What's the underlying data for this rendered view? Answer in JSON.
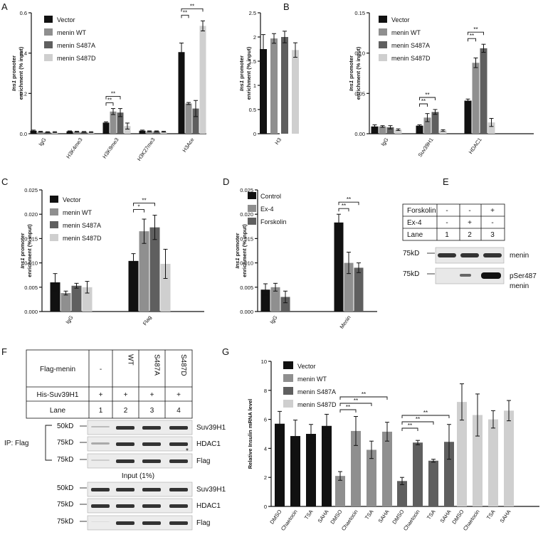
{
  "colors": {
    "s1": "#111111",
    "s2": "#8f8f8f",
    "s3": "#5f5f5f",
    "s4": "#cfcfcf"
  },
  "panels": {
    "A": "A",
    "B": "B",
    "C": "C",
    "D": "D",
    "E": "E",
    "F": "F",
    "G": "G"
  },
  "chart_data": [
    {
      "id": "A1",
      "type": "bar",
      "ylabel_italic": "Ins1",
      "ylabel_rest": " promoter",
      "ylabel2": "enrichment (% input)",
      "ylim": [
        0,
        0.6
      ],
      "yticks": [
        "0.0",
        "0.2",
        "0.4",
        "0.6"
      ],
      "categories": [
        "IgG",
        "H3K4me3",
        "H3K9me3",
        "H3K27me3",
        "H3Ace"
      ],
      "series": [
        {
          "name": "Vector",
          "values": [
            0.015,
            0.012,
            0.055,
            0.015,
            0.405
          ],
          "err": [
            0.003,
            0.002,
            0.004,
            0.003,
            0.045
          ]
        },
        {
          "name": "menin WT",
          "values": [
            0.01,
            0.01,
            0.11,
            0.012,
            0.15
          ],
          "err": [
            0.002,
            0.002,
            0.015,
            0.002,
            0.005
          ]
        },
        {
          "name": "menin S487A",
          "values": [
            0.008,
            0.009,
            0.105,
            0.012,
            0.125
          ],
          "err": [
            0.002,
            0.002,
            0.02,
            0.002,
            0.04
          ]
        },
        {
          "name": "menin S487D",
          "values": [
            0.008,
            0.008,
            0.038,
            0.01,
            0.535
          ],
          "err": [
            0.002,
            0.002,
            0.015,
            0.002,
            0.025
          ]
        }
      ],
      "sig": [
        {
          "cat": 2,
          "from": 0,
          "to": 1,
          "label": "**"
        },
        {
          "cat": 2,
          "from": 0,
          "to": 2,
          "label": "**"
        },
        {
          "cat": 4,
          "from": 0,
          "to": 1,
          "label": "**"
        },
        {
          "cat": 4,
          "from": 0,
          "to": 3,
          "label": "**"
        }
      ]
    },
    {
      "id": "A2",
      "type": "bar",
      "ylabel_italic": "Ins1",
      "ylabel_rest": " promoter",
      "ylabel2": "enrichment (% input)",
      "ylim": [
        0,
        2.5
      ],
      "yticks": [
        "0",
        "0.5",
        "1",
        "1.5",
        "2",
        "2.5"
      ],
      "categories": [
        "H3"
      ],
      "series": [
        {
          "name": "Vector",
          "values": [
            1.75
          ],
          "err": [
            0.3
          ]
        },
        {
          "name": "menin WT",
          "values": [
            1.97
          ],
          "err": [
            0.1
          ]
        },
        {
          "name": "menin S487A",
          "values": [
            2.0
          ],
          "err": [
            0.12
          ]
        },
        {
          "name": "menin S487D",
          "values": [
            1.73
          ],
          "err": [
            0.15
          ]
        }
      ],
      "sig": []
    },
    {
      "id": "B",
      "type": "bar",
      "ylabel_italic": "Ins1",
      "ylabel_rest": " promoter",
      "ylabel2": "enrichment (% input)",
      "ylim": [
        0,
        0.15
      ],
      "yticks": [
        "0.00",
        "0.05",
        "0.10",
        "0.15"
      ],
      "categories": [
        "IgG",
        "Suv39H1",
        "HDAC1"
      ],
      "series": [
        {
          "name": "Vector",
          "values": [
            0.009,
            0.01,
            0.041
          ],
          "err": [
            0.002,
            0.001,
            0.002
          ]
        },
        {
          "name": "menin WT",
          "values": [
            0.009,
            0.02,
            0.088
          ],
          "err": [
            0.001,
            0.005,
            0.006
          ]
        },
        {
          "name": "menin S487A",
          "values": [
            0.008,
            0.027,
            0.106
          ],
          "err": [
            0.002,
            0.003,
            0.005
          ]
        },
        {
          "name": "menin S487D",
          "values": [
            0.005,
            0.004,
            0.014
          ],
          "err": [
            0.001,
            0.001,
            0.005
          ]
        }
      ],
      "sig": [
        {
          "cat": 1,
          "from": 0,
          "to": 1,
          "label": "**"
        },
        {
          "cat": 1,
          "from": 0,
          "to": 2,
          "label": "**"
        },
        {
          "cat": 2,
          "from": 0,
          "to": 1,
          "label": "**"
        },
        {
          "cat": 2,
          "from": 0,
          "to": 2,
          "label": "**"
        }
      ]
    },
    {
      "id": "C",
      "type": "bar",
      "ylabel_italic": "Ins1",
      "ylabel_rest": " promoter",
      "ylabel2": "enrichment (% input)",
      "ylim": [
        0,
        0.025
      ],
      "yticks": [
        "0.000",
        "0.005",
        "0.010",
        "0.015",
        "0.020",
        "0.025"
      ],
      "categories": [
        "IgG",
        "Flag"
      ],
      "series": [
        {
          "name": "Vector",
          "values": [
            0.006,
            0.0104
          ],
          "err": [
            0.0018,
            0.0015
          ]
        },
        {
          "name": "menin WT",
          "values": [
            0.0038,
            0.0165
          ],
          "err": [
            0.0004,
            0.0025
          ]
        },
        {
          "name": "menin S487A",
          "values": [
            0.0053,
            0.0173
          ],
          "err": [
            0.0005,
            0.0025
          ]
        },
        {
          "name": "menin S487D",
          "values": [
            0.005,
            0.0098
          ],
          "err": [
            0.0012,
            0.003
          ]
        }
      ],
      "sig": [
        {
          "cat": 1,
          "from": 0,
          "to": 1,
          "label": "*"
        },
        {
          "cat": 1,
          "from": 0,
          "to": 2,
          "label": "**"
        }
      ]
    },
    {
      "id": "D",
      "type": "bar",
      "ylabel_italic": "Ins1",
      "ylabel_rest": " promoter",
      "ylabel2": "enrichment (% input)",
      "ylim": [
        0,
        0.025
      ],
      "yticks": [
        "0.000",
        "0.005",
        "0.010",
        "0.015",
        "0.020",
        "0.025"
      ],
      "categories": [
        "IgG",
        "Menin"
      ],
      "series": [
        {
          "name": "Control",
          "values": [
            0.0045,
            0.0183
          ],
          "err": [
            0.0012,
            0.0017
          ]
        },
        {
          "name": "Ex-4",
          "values": [
            0.005,
            0.01
          ],
          "err": [
            0.0008,
            0.0022
          ]
        },
        {
          "name": "Forskolin",
          "values": [
            0.003,
            0.009
          ],
          "err": [
            0.0012,
            0.001
          ]
        }
      ],
      "sig": [
        {
          "cat": 1,
          "from": 0,
          "to": 1,
          "label": "**"
        },
        {
          "cat": 1,
          "from": 0,
          "to": 2,
          "label": "**"
        }
      ]
    },
    {
      "id": "G",
      "type": "bar",
      "ylabel": "Relative Insulin mRNA level",
      "ylim": [
        0,
        10
      ],
      "yticks": [
        "0",
        "2",
        "4",
        "6",
        "8",
        "10"
      ],
      "groups": [
        "Vector",
        "menin WT",
        "menin S487A",
        "menin S487D"
      ],
      "treatments": [
        "DMSO",
        "Chaetocin",
        "TSA",
        "SAHA"
      ],
      "series": [
        {
          "name": "Vector",
          "values": [
            5.7,
            4.85,
            5.0,
            5.55
          ],
          "err": [
            0.85,
            1.1,
            0.65,
            0.8
          ]
        },
        {
          "name": "menin WT",
          "values": [
            2.1,
            5.2,
            3.9,
            5.15
          ],
          "err": [
            0.3,
            1.0,
            0.6,
            0.65
          ]
        },
        {
          "name": "menin S487A",
          "values": [
            1.75,
            4.4,
            3.15,
            4.45
          ],
          "err": [
            0.25,
            0.15,
            0.1,
            1.2
          ]
        },
        {
          "name": "menin S487D",
          "values": [
            7.2,
            6.3,
            6.0,
            6.6
          ],
          "err": [
            1.25,
            1.45,
            0.6,
            0.7
          ]
        }
      ],
      "sig": [
        {
          "grp": 1,
          "to": 1,
          "label": "**"
        },
        {
          "grp": 1,
          "to": 2,
          "label": "**"
        },
        {
          "grp": 1,
          "to": 3,
          "label": "**"
        },
        {
          "grp": 2,
          "to": 1,
          "label": "**"
        },
        {
          "grp": 2,
          "to": 2,
          "label": "**"
        },
        {
          "grp": 2,
          "to": 3,
          "label": "**"
        }
      ]
    }
  ],
  "panelE": {
    "rows": [
      {
        "label": "Forskolin",
        "vals": [
          "-",
          "-",
          "+"
        ]
      },
      {
        "label": "Ex-4",
        "vals": [
          "-",
          "+",
          "-"
        ]
      },
      {
        "label": "Lane",
        "vals": [
          "1",
          "2",
          "3"
        ]
      }
    ],
    "blots": [
      {
        "marker": "75kD",
        "label": "menin",
        "label2": ""
      },
      {
        "marker": "75kD",
        "label": "pSer487",
        "label2": "menin"
      }
    ]
  },
  "panelF": {
    "headers": [
      "Flag-menin",
      "-",
      "WT",
      "S487A",
      "S487D"
    ],
    "his": [
      "His-Suv39H1",
      "+",
      "+",
      "+",
      "+"
    ],
    "lane": [
      "Lane",
      "1",
      "2",
      "3",
      "4"
    ],
    "ip_label": "IP: Flag",
    "input_label": "Input (1%)",
    "ip_blots": [
      {
        "marker": "50kD",
        "label": "Suv39H1"
      },
      {
        "marker": "75kD",
        "label": "HDAC1"
      },
      {
        "marker": "75kD",
        "label": "Flag"
      }
    ],
    "input_blots": [
      {
        "marker": "50kD",
        "label": "Suv39H1"
      },
      {
        "marker": "75kD",
        "label": "HDAC1"
      },
      {
        "marker": "75kD",
        "label": "Flag"
      }
    ],
    "asterisk": "*"
  }
}
